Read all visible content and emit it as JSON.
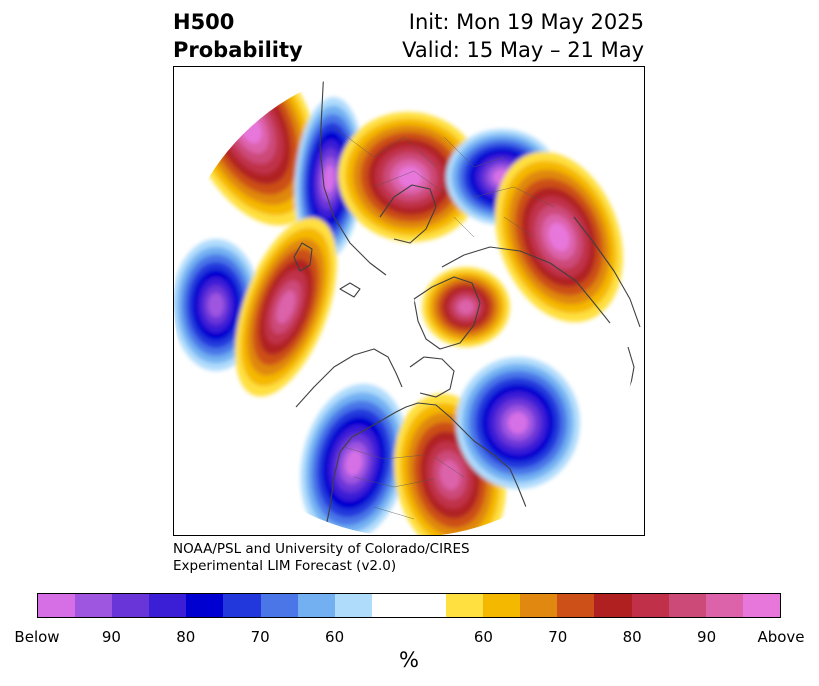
{
  "title": {
    "variable": "H500",
    "product": "Probability",
    "init": "Init: Mon 19 May 2025",
    "valid": "Valid: 15 May – 21 May"
  },
  "credit": {
    "line1": "NOAA/PSL and University of Colorado/CIRES",
    "line2": "Experimental LIM Forecast (v2.0)"
  },
  "colorbar": {
    "units": "%",
    "colors": [
      "#d66fe6",
      "#9e55e0",
      "#6a35d8",
      "#3a1fd6",
      "#0000d0",
      "#2238dc",
      "#4a76e8",
      "#72b0f2",
      "#b0dcfc",
      "#ffffff",
      "#ffffff",
      "#ffe040",
      "#f5b800",
      "#e08810",
      "#cc5018",
      "#b02020",
      "#c03048",
      "#cc4a78",
      "#dc62aa",
      "#e877dc"
    ],
    "labels": [
      "Below",
      "90",
      "80",
      "70",
      "60",
      "60",
      "70",
      "80",
      "90",
      "Above"
    ]
  },
  "map": {
    "projection": "north-polar-stereographic",
    "anomalies": [
      {
        "sign": "above",
        "strength": 0.95,
        "region": "North Pacific west"
      },
      {
        "sign": "below",
        "strength": 1.0,
        "region": "Western Europe"
      },
      {
        "sign": "above",
        "strength": 1.0,
        "region": "Eastern Europe / West Russia"
      },
      {
        "sign": "below",
        "strength": 1.0,
        "region": "Central Asia / Siberia"
      },
      {
        "sign": "above",
        "strength": 1.0,
        "region": "East Asia / Japan"
      },
      {
        "sign": "below",
        "strength": 0.9,
        "region": "Atlantic west of Europe"
      },
      {
        "sign": "above",
        "strength": 0.9,
        "region": "North Atlantic"
      },
      {
        "sign": "below",
        "strength": 1.0,
        "region": "Western United States"
      },
      {
        "sign": "above",
        "strength": 0.9,
        "region": "Eastern North America"
      },
      {
        "sign": "below",
        "strength": 1.0,
        "region": "Gulf of Alaska"
      },
      {
        "sign": "above",
        "strength": 0.85,
        "region": "Arctic Ocean"
      }
    ]
  }
}
